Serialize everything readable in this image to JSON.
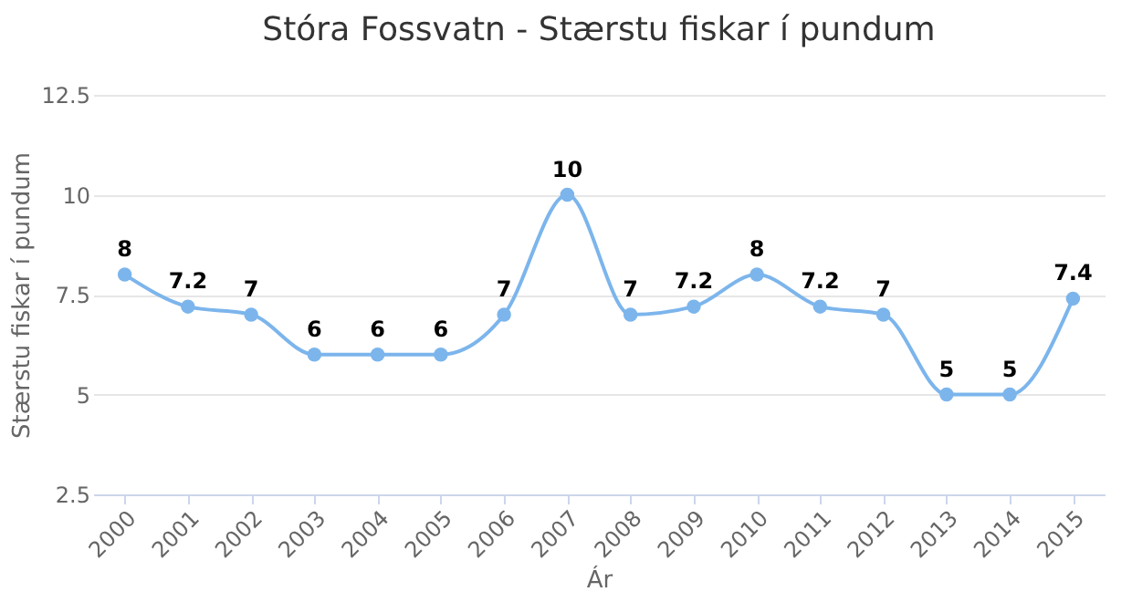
{
  "chart_data": {
    "type": "line",
    "title": "Stóra Fossvatn - Stærstu fiskar í pundum",
    "xlabel": "Ár",
    "ylabel": "Stærstu fiskar í pundum",
    "categories": [
      "2000",
      "2001",
      "2002",
      "2003",
      "2004",
      "2005",
      "2006",
      "2007",
      "2008",
      "2009",
      "2010",
      "2011",
      "2012",
      "2013",
      "2014",
      "2015"
    ],
    "series": [
      {
        "color": "#7cb5ec",
        "values": [
          8,
          7.2,
          7,
          6,
          6,
          6,
          7,
          10,
          7,
          7.2,
          8,
          7.2,
          7,
          5,
          5,
          7.4
        ]
      }
    ],
    "ylim": [
      2.5,
      12.5
    ],
    "yticks": [
      2.5,
      5,
      7.5,
      10,
      12.5
    ],
    "grid": "y",
    "marker": "circle",
    "data_labels": true,
    "legend": false
  }
}
